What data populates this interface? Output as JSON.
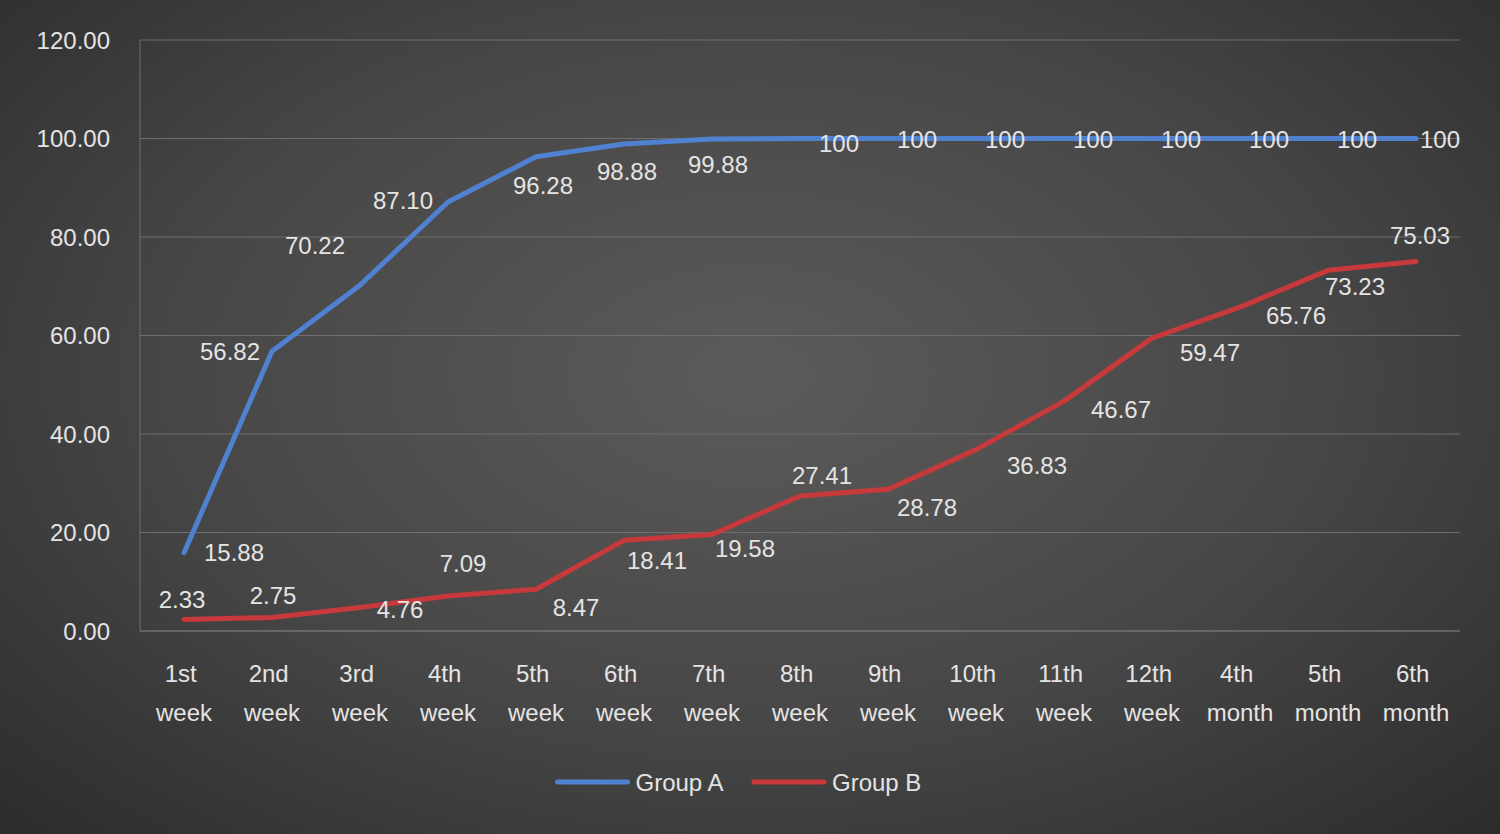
{
  "chart_data": {
    "type": "line",
    "categories": [
      "1st week",
      "2nd week",
      "3rd week",
      "4th week",
      "5th week",
      "6th week",
      "7th week",
      "8th week",
      "9th week",
      "10th week",
      "11th week",
      "12th week",
      "4th month",
      "5th month",
      "6th month"
    ],
    "ylim": [
      0,
      120
    ],
    "yticks": [
      {
        "value": 0,
        "label": "0.00"
      },
      {
        "value": 20,
        "label": "20.00"
      },
      {
        "value": 40,
        "label": "40.00"
      },
      {
        "value": 60,
        "label": "60.00"
      },
      {
        "value": 80,
        "label": "80.00"
      },
      {
        "value": 100,
        "label": "100.00"
      },
      {
        "value": 120,
        "label": "120.00"
      }
    ],
    "grid": true,
    "legend": "bottom",
    "data_labels": true,
    "series": [
      {
        "name": "Group A",
        "color": "#4f81d0",
        "values": [
          15.88,
          56.82,
          70.22,
          87.1,
          96.28,
          98.88,
          99.88,
          100,
          100,
          100,
          100,
          100,
          100,
          100,
          100
        ],
        "value_labels": [
          "15.88",
          "56.82",
          "70.22",
          "87.10",
          "96.28",
          "98.88",
          "99.88",
          "100",
          "100",
          "100",
          "100",
          "100",
          "100",
          "100",
          "100"
        ]
      },
      {
        "name": "Group B",
        "color": "#c8393b",
        "values": [
          2.33,
          2.75,
          4.76,
          7.09,
          8.47,
          18.41,
          19.58,
          27.41,
          28.78,
          36.83,
          46.67,
          59.47,
          65.76,
          73.23,
          75.03
        ],
        "value_labels": [
          "2.33",
          "2.75",
          "4.76",
          "7.09",
          "8.47",
          "18.41",
          "19.58",
          "27.41",
          "28.78",
          "36.83",
          "46.67",
          "59.47",
          "65.76",
          "73.23",
          "75.03"
        ]
      }
    ]
  }
}
